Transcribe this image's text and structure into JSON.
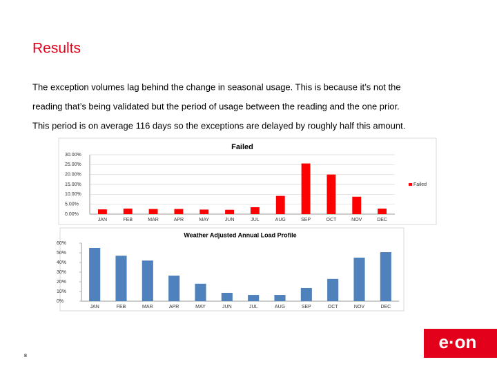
{
  "header": {
    "title": "Results"
  },
  "body": [
    "The exception volumes lag behind the change in seasonal usage. This is because it’s not the",
    "reading that’s being validated but the period of usage between the reading and the one prior.",
    "This period is on average 116 days so the exceptions are delayed by roughly half this amount."
  ],
  "chart_data": [
    {
      "type": "bar",
      "title": "Failed",
      "categories": [
        "JAN",
        "FEB",
        "MAR",
        "APR",
        "MAY",
        "JUN",
        "JUL",
        "AUG",
        "SEP",
        "OCT",
        "NOV",
        "DEC"
      ],
      "series": [
        {
          "name": "Failed",
          "color": "#ff0000",
          "values": [
            2.4,
            2.8,
            2.6,
            2.6,
            2.3,
            2.2,
            3.5,
            9.2,
            25.6,
            20.0,
            8.8,
            2.8
          ]
        }
      ],
      "ylim": [
        0,
        30
      ],
      "yticks": [
        {
          "value": 0,
          "label": "0.00%"
        },
        {
          "value": 5,
          "label": "5.00%"
        },
        {
          "value": 10,
          "label": "10.00%"
        },
        {
          "value": 15,
          "label": "15.00%"
        },
        {
          "value": 20,
          "label": "20.00%"
        },
        {
          "value": 25,
          "label": "25.00%"
        },
        {
          "value": 30,
          "label": "30.00%"
        }
      ],
      "grid": true,
      "legend": "right"
    },
    {
      "type": "bar",
      "title": "Weather Adjusted Annual Load Profile",
      "categories": [
        "JAN",
        "FEB",
        "MAR",
        "APR",
        "MAY",
        "JUN",
        "JUL",
        "AUG",
        "SEP",
        "OCT",
        "NOV",
        "DEC"
      ],
      "series": [
        {
          "color": "#4f81bd",
          "values": [
            55,
            47,
            42,
            26.4,
            18,
            8.6,
            6.4,
            6.4,
            13.6,
            23,
            45,
            50.7
          ]
        }
      ],
      "ylim": [
        0,
        60
      ],
      "yticks": [
        {
          "value": 0,
          "label": "0%"
        },
        {
          "value": 10,
          "label": "10%"
        },
        {
          "value": 20,
          "label": "20%"
        },
        {
          "value": 30,
          "label": "30%"
        },
        {
          "value": 40,
          "label": "40%"
        },
        {
          "value": 50,
          "label": "50%"
        },
        {
          "value": 60,
          "label": "60%"
        }
      ],
      "grid": false
    }
  ],
  "footer": {
    "page": "8",
    "logo": "e·on"
  }
}
